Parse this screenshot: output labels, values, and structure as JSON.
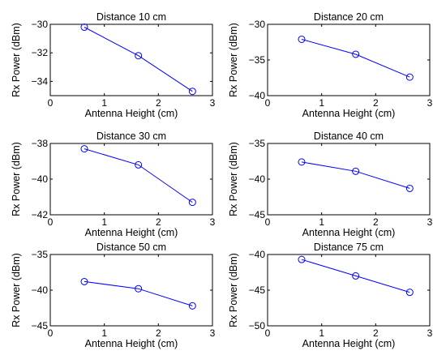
{
  "figure": {
    "background": "#ffffff",
    "line_color": "#0000ff",
    "axes_color": "#000000"
  },
  "chart_data": [
    {
      "type": "line",
      "title": "Distance 10 cm",
      "xlabel": "Antenna Height (cm)",
      "ylabel": "Rx Power (dBm)",
      "xlim": [
        0,
        3
      ],
      "ylim": [
        -35,
        -30
      ],
      "xticks": [
        0,
        1,
        2,
        3
      ],
      "yticks": [
        -30,
        -32,
        -34
      ],
      "grid": false,
      "series": [
        {
          "x": [
            0.63,
            1.63,
            2.63
          ],
          "y": [
            -30.2,
            -32.2,
            -34.7
          ],
          "marker": "circle"
        }
      ]
    },
    {
      "type": "line",
      "title": "Distance 20 cm",
      "xlabel": "Antenna Height (cm)",
      "ylabel": "Rx Power (dBm)",
      "xlim": [
        0,
        3
      ],
      "ylim": [
        -40,
        -30
      ],
      "xticks": [
        0,
        1,
        2,
        3
      ],
      "yticks": [
        -30,
        -35,
        -40
      ],
      "grid": false,
      "series": [
        {
          "x": [
            0.63,
            1.63,
            2.63
          ],
          "y": [
            -32.1,
            -34.2,
            -37.4
          ],
          "marker": "circle"
        }
      ]
    },
    {
      "type": "line",
      "title": "Distance 30 cm",
      "xlabel": "Antenna Height (cm)",
      "ylabel": "Rx Power (dBm)",
      "xlim": [
        0,
        3
      ],
      "ylim": [
        -42,
        -38
      ],
      "xticks": [
        0,
        1,
        2,
        3
      ],
      "yticks": [
        -38,
        -40,
        -42
      ],
      "grid": false,
      "series": [
        {
          "x": [
            0.63,
            1.63,
            2.63
          ],
          "y": [
            -38.3,
            -39.2,
            -41.3
          ],
          "marker": "circle"
        }
      ]
    },
    {
      "type": "line",
      "title": "Distance 40 cm",
      "xlabel": "Antenna Height (cm)",
      "ylabel": "Rx Power (dBm)",
      "xlim": [
        0,
        3
      ],
      "ylim": [
        -45,
        -35
      ],
      "xticks": [
        0,
        1,
        2,
        3
      ],
      "yticks": [
        -35,
        -40,
        -45
      ],
      "grid": false,
      "series": [
        {
          "x": [
            0.63,
            1.63,
            2.63
          ],
          "y": [
            -37.6,
            -38.9,
            -41.3
          ],
          "marker": "circle"
        }
      ]
    },
    {
      "type": "line",
      "title": "Distance 50 cm",
      "xlabel": "Antenna Height (cm)",
      "ylabel": "Rx Power (dBm)",
      "xlim": [
        0,
        3
      ],
      "ylim": [
        -45,
        -35
      ],
      "xticks": [
        0,
        1,
        2,
        3
      ],
      "yticks": [
        -35,
        -40,
        -45
      ],
      "grid": false,
      "series": [
        {
          "x": [
            0.63,
            1.63,
            2.63
          ],
          "y": [
            -38.8,
            -39.8,
            -42.2
          ],
          "marker": "circle"
        }
      ]
    },
    {
      "type": "line",
      "title": "Distance 75 cm",
      "xlabel": "Antenna Height (cm)",
      "ylabel": "Rx Power (dBm)",
      "xlim": [
        0,
        3
      ],
      "ylim": [
        -50,
        -40
      ],
      "xticks": [
        0,
        1,
        2,
        3
      ],
      "yticks": [
        -40,
        -45,
        -50
      ],
      "grid": false,
      "series": [
        {
          "x": [
            0.63,
            1.63,
            2.63
          ],
          "y": [
            -40.7,
            -43.0,
            -45.3
          ],
          "marker": "circle"
        }
      ]
    }
  ]
}
